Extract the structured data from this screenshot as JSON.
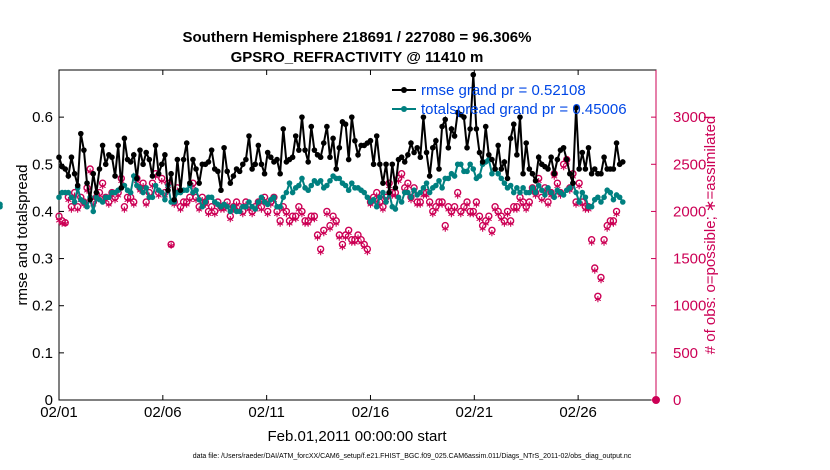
{
  "chart_data": {
    "type": "line",
    "title": "Southern Hemisphere 218691 / 227080 = 96.306%",
    "subtitle": "GPSRO_REFRACTIVITY @ 11410 m",
    "xlabel": "Feb.01,2011 00:00:00 start",
    "ylabel": "rmse and totalspread",
    "y2label": "# of obs: o=possible; ∗=assimilated",
    "xlim": [
      1,
      29.75
    ],
    "ylim": [
      0,
      0.7
    ],
    "y2lim": [
      0,
      3500
    ],
    "xticks": [
      1,
      6,
      11,
      16,
      21,
      26
    ],
    "xtick_labels": [
      "02/01",
      "02/06",
      "02/11",
      "02/16",
      "02/21",
      "02/26"
    ],
    "yticks": [
      0,
      0.1,
      0.2,
      0.3,
      0.4,
      0.5,
      0.6
    ],
    "ytick_labels": [
      "0",
      "0.1",
      "0.2",
      "0.3",
      "0.4",
      "0.5",
      "0.6"
    ],
    "y2ticks": [
      0,
      500,
      1000,
      1500,
      2000,
      2500,
      3000
    ],
    "y2tick_labels": [
      "0",
      "500",
      "1000",
      "1500",
      "2000",
      "2500",
      "3000"
    ],
    "legend_position": "top-right",
    "footer": "data file: /Users/raeder/DAI/ATM_forcXX/CAM6_setup/f.e21.FHIST_BGC.f09_025.CAM6assim.011/Diags_NTrS_2011-02/obs_diag_output.nc",
    "colors": {
      "rmse": "#000000",
      "spread": "#008080",
      "obs": "#cc0055",
      "legend_text": "#0047e6",
      "axis": "#000000"
    },
    "series": [
      {
        "name": "rmse grand pr = 0.52108",
        "axis": "left",
        "color": "#000000",
        "values": [
          0.515,
          0.495,
          0.49,
          0.475,
          0.515,
          0.48,
          0.455,
          0.565,
          0.53,
          0.46,
          0.425,
          0.48,
          0.44,
          0.49,
          0.54,
          0.5,
          0.52,
          0.515,
          0.475,
          0.54,
          0.45,
          0.555,
          0.51,
          0.505,
          0.52,
          0.47,
          0.53,
          0.5,
          0.525,
          0.51,
          0.475,
          0.54,
          0.48,
          0.5,
          0.52,
          0.445,
          0.48,
          0.425,
          0.51,
          0.445,
          0.51,
          0.545,
          0.46,
          0.51,
          0.49,
          0.46,
          0.5,
          0.5,
          0.505,
          0.53,
          0.49,
          0.485,
          0.445,
          0.535,
          0.485,
          0.46,
          0.475,
          0.49,
          0.485,
          0.5,
          0.51,
          0.56,
          0.49,
          0.5,
          0.54,
          0.5,
          0.48,
          0.525,
          0.515,
          0.505,
          0.51,
          0.48,
          0.575,
          0.505,
          0.51,
          0.515,
          0.56,
          0.53,
          0.6,
          0.53,
          0.505,
          0.58,
          0.53,
          0.52,
          0.515,
          0.545,
          0.58,
          0.515,
          0.555,
          0.49,
          0.535,
          0.59,
          0.585,
          0.51,
          0.6,
          0.55,
          0.52,
          0.54,
          0.54,
          0.545,
          0.55,
          0.5,
          0.56,
          0.5,
          0.46,
          0.5,
          0.44,
          0.5,
          0.45,
          0.51,
          0.515,
          0.505,
          0.52,
          0.545,
          0.525,
          0.535,
          0.515,
          0.6,
          0.525,
          0.475,
          0.535,
          0.55,
          0.49,
          0.58,
          0.595,
          0.535,
          0.575,
          0.56,
          0.61,
          0.605,
          0.6,
          0.535,
          0.575,
          0.69,
          0.575,
          0.525,
          0.505,
          0.58,
          0.52,
          0.51,
          0.49,
          0.54,
          0.49,
          0.505,
          0.47,
          0.555,
          0.585,
          0.52,
          0.6,
          0.48,
          0.545,
          0.49,
          0.48,
          0.465,
          0.515,
          0.5,
          0.495,
          0.49,
          0.515,
          0.48,
          0.51,
          0.53,
          0.535,
          0.51,
          0.48,
          0.46,
          0.62,
          0.49,
          0.525,
          0.49,
          0.535,
          0.48,
          0.49,
          0.48,
          0.48,
          0.515,
          0.49,
          0.49,
          0.49,
          0.545,
          0.5,
          0.505
        ]
      },
      {
        "name": "totalspread grand pr = 0.45006",
        "axis": "left",
        "color": "#008080",
        "values": [
          0.43,
          0.44,
          0.44,
          0.44,
          0.43,
          0.42,
          0.45,
          0.425,
          0.42,
          0.41,
          0.43,
          0.4,
          0.43,
          0.425,
          0.42,
          0.43,
          0.43,
          0.44,
          0.44,
          0.445,
          0.45,
          0.455,
          0.445,
          0.44,
          0.475,
          0.455,
          0.45,
          0.44,
          0.45,
          0.43,
          0.43,
          0.455,
          0.445,
          0.44,
          0.425,
          0.455,
          0.42,
          0.42,
          0.44,
          0.44,
          0.445,
          0.445,
          0.455,
          0.44,
          0.445,
          0.425,
          0.41,
          0.42,
          0.43,
          0.43,
          0.42,
          0.415,
          0.41,
          0.415,
          0.41,
          0.4,
          0.41,
          0.4,
          0.4,
          0.41,
          0.41,
          0.42,
          0.41,
          0.405,
          0.42,
          0.43,
          0.42,
          0.415,
          0.425,
          0.43,
          0.41,
          0.41,
          0.43,
          0.44,
          0.46,
          0.44,
          0.45,
          0.455,
          0.47,
          0.45,
          0.445,
          0.455,
          0.465,
          0.46,
          0.465,
          0.45,
          0.455,
          0.465,
          0.475,
          0.47,
          0.47,
          0.46,
          0.455,
          0.445,
          0.46,
          0.45,
          0.45,
          0.445,
          0.44,
          0.43,
          0.42,
          0.425,
          0.41,
          0.43,
          0.44,
          0.42,
          0.44,
          0.41,
          0.405,
          0.43,
          0.42,
          0.44,
          0.44,
          0.43,
          0.445,
          0.435,
          0.44,
          0.45,
          0.46,
          0.44,
          0.45,
          0.455,
          0.465,
          0.45,
          0.47,
          0.47,
          0.48,
          0.475,
          0.5,
          0.5,
          0.485,
          0.485,
          0.5,
          0.49,
          0.47,
          0.475,
          0.5,
          0.505,
          0.51,
          0.48,
          0.49,
          0.48,
          0.47,
          0.46,
          0.45,
          0.455,
          0.44,
          0.45,
          0.44,
          0.45,
          0.44,
          0.44,
          0.45,
          0.44,
          0.455,
          0.445,
          0.435,
          0.45,
          0.44,
          0.43,
          0.445,
          0.44,
          0.435,
          0.445,
          0.45,
          0.46,
          0.44,
          0.42,
          0.44,
          0.43,
          0.41,
          0.41,
          0.425,
          0.43,
          0.42,
          0.43,
          0.445,
          0.44,
          0.425,
          0.435,
          0.43,
          0.42,
          0.415,
          0.41
        ]
      },
      {
        "name": "possible",
        "axis": "right",
        "marker": "o",
        "color": "#cc0055",
        "values": [
          1950,
          1900,
          1880,
          2150,
          2050,
          2200,
          2050,
          2150,
          2100,
          2250,
          2450,
          2100,
          2150,
          2200,
          2300,
          2150,
          2100,
          2200,
          2150,
          2200,
          2350,
          2050,
          2150,
          2150,
          2100,
          2350,
          2250,
          2300,
          2100,
          2200,
          2300,
          2400,
          2200,
          2350,
          2200,
          2300,
          1650,
          2100,
          2250,
          2050,
          2100,
          2100,
          2150,
          2300,
          2150,
          2050,
          2150,
          2100,
          2000,
          2050,
          2000,
          2100,
          2050,
          2050,
          2100,
          1950,
          2050,
          2100,
          2050,
          2000,
          2100,
          2050,
          2000,
          2050,
          2100,
          2050,
          2150,
          2000,
          2100,
          2150,
          2000,
          1900,
          2050,
          2000,
          1900,
          1950,
          1950,
          2050,
          2000,
          1900,
          1900,
          1950,
          1950,
          1750,
          1600,
          1800,
          2000,
          1850,
          1950,
          1900,
          1750,
          1650,
          1750,
          1800,
          1700,
          1700,
          1750,
          1700,
          1650,
          1600,
          2100,
          2150,
          2200,
          2100,
          2050,
          2150,
          2300,
          2200,
          2200,
          2350,
          2400,
          2250,
          2300,
          2150,
          2250,
          2100,
          2100,
          2200,
          2200,
          2100,
          2000,
          2050,
          2100,
          2100,
          1850,
          2050,
          2000,
          2050,
          2200,
          2000,
          2050,
          2100,
          2000,
          2000,
          2100,
          1950,
          1850,
          1900,
          1950,
          1800,
          2050,
          2000,
          1950,
          1900,
          2000,
          1900,
          2050,
          2050,
          2150,
          2100,
          2050,
          2100,
          2250,
          2200,
          2350,
          2150,
          2250,
          2100,
          2200,
          2400,
          2300,
          2200,
          2500,
          2550,
          2250,
          2400,
          2100,
          2300,
          2100,
          2050,
          2050,
          1700,
          1400,
          1100,
          1300,
          1700,
          1850,
          1900,
          1900,
          2000
        ]
      },
      {
        "name": "assimilated",
        "axis": "right",
        "marker": "*",
        "color": "#cc0055",
        "values": [
          1880,
          1850,
          1850,
          2100,
          2000,
          2150,
          2000,
          2100,
          2050,
          2200,
          2400,
          2050,
          2100,
          2150,
          2250,
          2100,
          2050,
          2150,
          2100,
          2150,
          2300,
          2000,
          2100,
          2100,
          2050,
          2300,
          2200,
          2250,
          2050,
          2150,
          2250,
          2350,
          2150,
          2300,
          2150,
          2250,
          1620,
          2050,
          2200,
          2000,
          2050,
          2050,
          2100,
          2250,
          2100,
          2000,
          2100,
          2050,
          1950,
          2000,
          1950,
          2050,
          2000,
          2000,
          2050,
          1900,
          2000,
          2050,
          2000,
          1950,
          2050,
          2000,
          1950,
          2000,
          2050,
          2000,
          2100,
          1950,
          2050,
          2100,
          1950,
          1850,
          2000,
          1950,
          1850,
          1900,
          1900,
          2000,
          1950,
          1850,
          1850,
          1900,
          1900,
          1700,
          1550,
          1750,
          1950,
          1800,
          1900,
          1850,
          1700,
          1600,
          1700,
          1750,
          1650,
          1650,
          1700,
          1650,
          1600,
          1550,
          2050,
          2100,
          2150,
          2050,
          2000,
          2100,
          2250,
          2150,
          2150,
          2300,
          2350,
          2200,
          2250,
          2100,
          2200,
          2050,
          2050,
          2150,
          2150,
          2050,
          1950,
          2000,
          2050,
          2050,
          1800,
          2000,
          1950,
          2000,
          2150,
          1950,
          2000,
          2050,
          1950,
          1950,
          2050,
          1900,
          1800,
          1850,
          1900,
          1750,
          2000,
          1950,
          1900,
          1850,
          1950,
          1850,
          2000,
          2000,
          2100,
          2050,
          2000,
          2050,
          2200,
          2150,
          2300,
          2100,
          2200,
          2050,
          2150,
          2350,
          2250,
          2150,
          2450,
          2500,
          2200,
          2350,
          2050,
          2250,
          2050,
          2000,
          2000,
          1650,
          1350,
          1050,
          1250,
          1650,
          1800,
          1850,
          1850,
          1950
        ]
      }
    ],
    "final_point": {
      "x": 29.75,
      "y2": 0
    }
  }
}
